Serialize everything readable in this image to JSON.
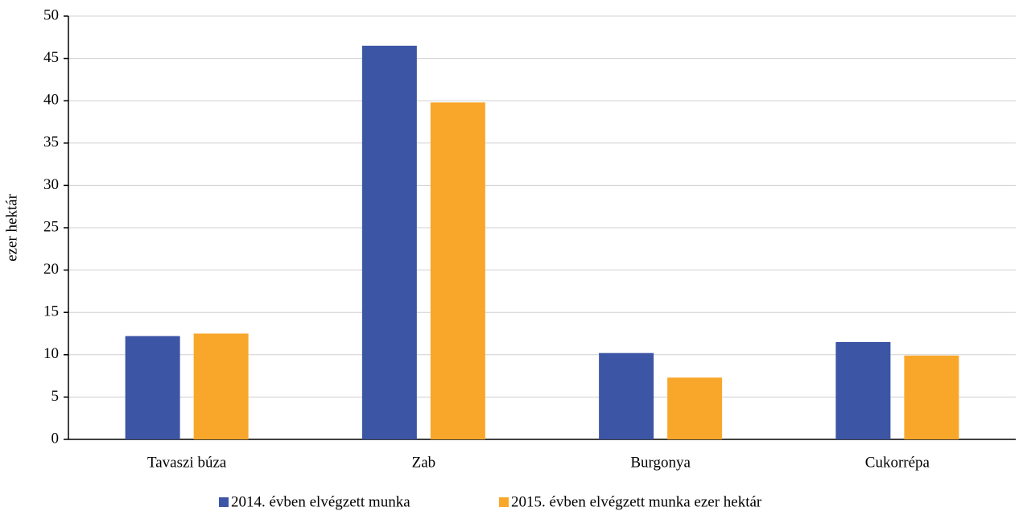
{
  "chart_data": {
    "type": "bar",
    "y_label": "ezer hektár",
    "categories": [
      "Tavaszi búza",
      "Zab",
      "Burgonya",
      "Cukorrépa"
    ],
    "series": [
      {
        "name": "2014. évben elvégzett munka",
        "color": "#3c55a5",
        "values": [
          12.2,
          46.5,
          10.2,
          11.5
        ]
      },
      {
        "name": "2015. évben elvégzett munka ezer hektár",
        "color": "#f9a72b",
        "values": [
          12.5,
          39.8,
          7.3,
          9.9
        ]
      }
    ],
    "ylim": [
      0,
      50
    ],
    "yticks": [
      0,
      5,
      10,
      15,
      20,
      25,
      30,
      35,
      40,
      45,
      50
    ],
    "grid": true,
    "legend": "bottom"
  }
}
